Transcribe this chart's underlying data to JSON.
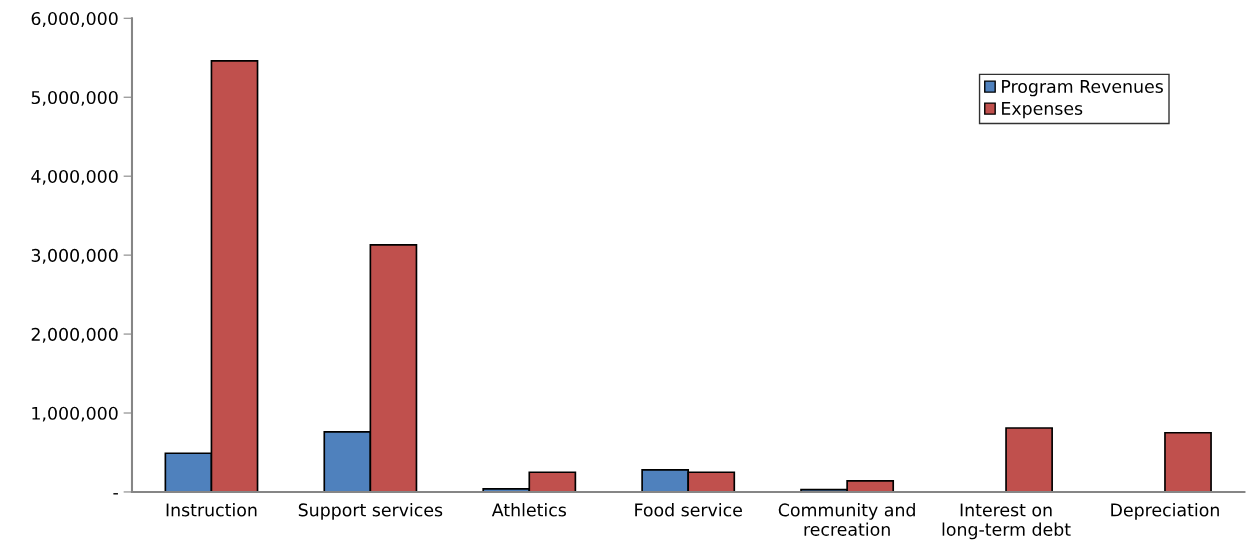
{
  "chart_data": {
    "type": "bar",
    "categories": [
      "Instruction",
      "Support services",
      "Athletics",
      "Food service",
      "Community and\nrecreation",
      "Interest on\nlong-term debt",
      "Depreciation"
    ],
    "series": [
      {
        "name": "Program Revenues",
        "color": "#4f81bd",
        "values": [
          490000,
          760000,
          40000,
          280000,
          30000,
          null,
          null
        ]
      },
      {
        "name": "Expenses",
        "color": "#c0504d",
        "values": [
          5460000,
          3130000,
          250000,
          250000,
          140000,
          810000,
          750000
        ]
      }
    ],
    "ylim": [
      0,
      6000000
    ],
    "yticks": [
      {
        "value": 0,
        "label": "-"
      },
      {
        "value": 1000000,
        "label": "1,000,000"
      },
      {
        "value": 2000000,
        "label": "2,000,000"
      },
      {
        "value": 3000000,
        "label": "3,000,000"
      },
      {
        "value": 4000000,
        "label": "4,000,000"
      },
      {
        "value": 5000000,
        "label": "5,000,000"
      },
      {
        "value": 6000000,
        "label": "6,000,000"
      }
    ],
    "grid": false,
    "legend": "top right"
  }
}
